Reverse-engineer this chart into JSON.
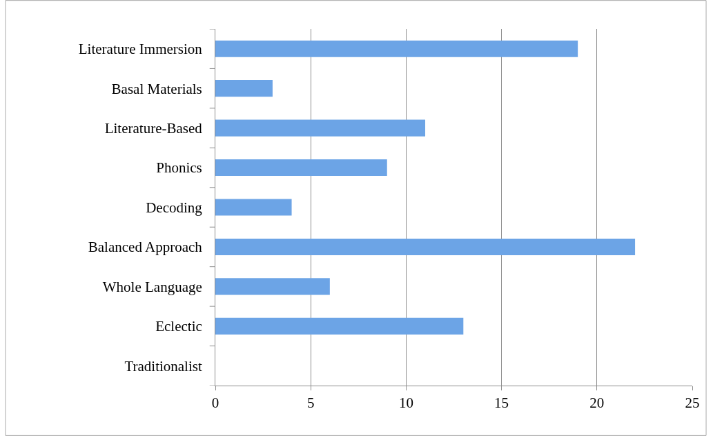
{
  "chart_data": {
    "type": "bar",
    "orientation": "horizontal",
    "categories": [
      "Literature Immersion",
      "Basal Materials",
      "Literature-Based",
      "Phonics",
      "Decoding",
      "Balanced Approach",
      "Whole Language",
      "Eclectic",
      "Traditionalist"
    ],
    "values": [
      19,
      3,
      11,
      9,
      4,
      22,
      6,
      13,
      0
    ],
    "color": "#6ca4e6",
    "xlim": [
      0,
      25
    ],
    "xticks": [
      0,
      5,
      10,
      15,
      20,
      25
    ],
    "grid": "x"
  }
}
